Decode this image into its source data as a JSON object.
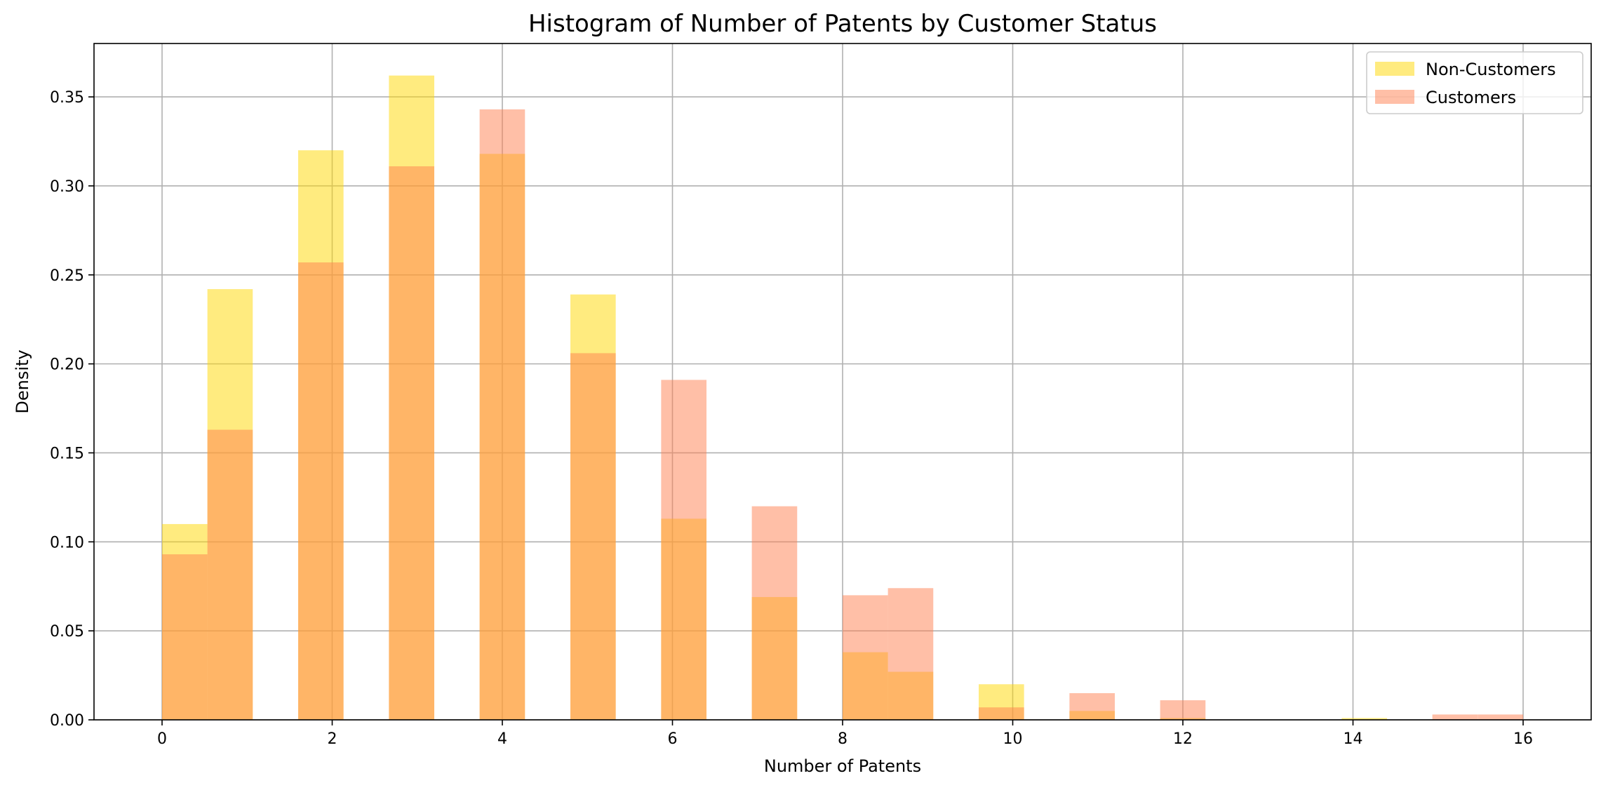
{
  "chart_data": {
    "type": "bar",
    "title": "Histogram of Number of Patents by Customer Status",
    "xlabel": "Number of Patents",
    "ylabel": "Density",
    "xlim": [
      -0.8,
      16.8
    ],
    "ylim": [
      0,
      0.38
    ],
    "xticks": [
      "0",
      "2",
      "4",
      "6",
      "8",
      "10",
      "12",
      "14",
      "16"
    ],
    "yticks": [
      "0.00",
      "0.05",
      "0.10",
      "0.15",
      "0.20",
      "0.25",
      "0.30",
      "0.35"
    ],
    "grid": true,
    "legend_position": "top-right",
    "bin_width": 0.533,
    "series": [
      {
        "name": "Non-Customers",
        "color": "#FFD700",
        "bins": [
          {
            "x": 0.0,
            "value": 0.11
          },
          {
            "x": 0.533,
            "value": 0.242
          },
          {
            "x": 1.6,
            "value": 0.32
          },
          {
            "x": 2.667,
            "value": 0.362
          },
          {
            "x": 3.733,
            "value": 0.318
          },
          {
            "x": 4.8,
            "value": 0.239
          },
          {
            "x": 5.867,
            "value": 0.113
          },
          {
            "x": 6.933,
            "value": 0.069
          },
          {
            "x": 8.0,
            "value": 0.038
          },
          {
            "x": 8.533,
            "value": 0.027
          },
          {
            "x": 9.6,
            "value": 0.02
          },
          {
            "x": 10.667,
            "value": 0.005
          },
          {
            "x": 11.733,
            "value": 0.001
          },
          {
            "x": 13.867,
            "value": 0.001
          }
        ]
      },
      {
        "name": "Customers",
        "color": "#FF7F50",
        "bins": [
          {
            "x": 0.0,
            "value": 0.093
          },
          {
            "x": 0.533,
            "value": 0.163
          },
          {
            "x": 1.6,
            "value": 0.257
          },
          {
            "x": 2.667,
            "value": 0.311
          },
          {
            "x": 3.733,
            "value": 0.343
          },
          {
            "x": 4.8,
            "value": 0.206
          },
          {
            "x": 5.867,
            "value": 0.191
          },
          {
            "x": 6.933,
            "value": 0.12
          },
          {
            "x": 8.0,
            "value": 0.07
          },
          {
            "x": 8.533,
            "value": 0.074
          },
          {
            "x": 9.6,
            "value": 0.007
          },
          {
            "x": 10.667,
            "value": 0.015
          },
          {
            "x": 11.733,
            "value": 0.011
          },
          {
            "x": 14.933,
            "value": 0.003
          },
          {
            "x": 15.467,
            "value": 0.003
          }
        ]
      }
    ]
  }
}
